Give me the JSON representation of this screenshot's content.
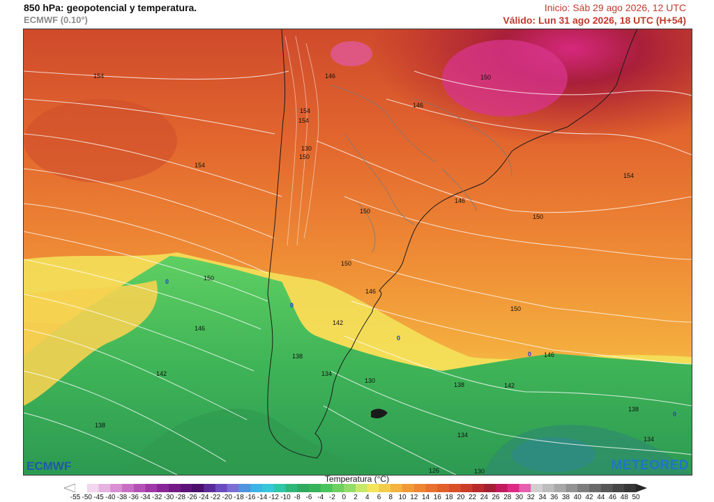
{
  "header": {
    "title": "850 hPa: geopotencial y temperatura.",
    "model": "ECMWF (0.10°)",
    "init": "Inicio: Sáb 29 ago 2026, 12 UTC",
    "valid": "Válido: Lun 31 ago 2026, 18 UTC (H+54)"
  },
  "logos": {
    "ecmwf": "ECMWF",
    "meteored": "METEORED"
  },
  "legend": {
    "title": "Temperatura (°C)",
    "ticks": [
      "-55",
      "-50",
      "-45",
      "-40",
      "-38",
      "-36",
      "-34",
      "-32",
      "-30",
      "-28",
      "-26",
      "-24",
      "-22",
      "-20",
      "-18",
      "-16",
      "-14",
      "-12",
      "-10",
      "-8",
      "-6",
      "-4",
      "-2",
      "0",
      "2",
      "4",
      "6",
      "8",
      "10",
      "12",
      "14",
      "16",
      "18",
      "20",
      "22",
      "24",
      "26",
      "28",
      "30",
      "32",
      "34",
      "36",
      "38",
      "40",
      "42",
      "44",
      "46",
      "48",
      "50"
    ],
    "colors": [
      "#ffffff",
      "#f2d7ee",
      "#e6b3e0",
      "#d98fd3",
      "#c86fc4",
      "#b550b5",
      "#a037a6",
      "#8a2597",
      "#741a88",
      "#5e1279",
      "#4b0f6b",
      "#5a2a9a",
      "#6b4bc0",
      "#7b6fd6",
      "#4f94de",
      "#3cb4e6",
      "#36c7d8",
      "#30c7a8",
      "#2fb77a",
      "#2fa860",
      "#35b35a",
      "#49c35a",
      "#6fd060",
      "#93dc6a",
      "#c8e86a",
      "#f3e55c",
      "#f5cc4a",
      "#f4b23e",
      "#f19a38",
      "#ee8533",
      "#e9712f",
      "#e2602c",
      "#d94f2a",
      "#cc3c2a",
      "#b82a2d",
      "#a41f34",
      "#c21a5c",
      "#dc2a86",
      "#e85fb0",
      "#d0d0d0",
      "#bdbdbd",
      "#a8a8a8",
      "#939393",
      "#7e7e7e",
      "#6a6a6a",
      "#575757",
      "#464646",
      "#363636"
    ]
  },
  "map": {
    "isohypse_labels": [
      "154",
      "154",
      "146",
      "154",
      "154",
      "150",
      "130",
      "146",
      "150",
      "154",
      "150",
      "146",
      "150",
      "150",
      "146",
      "142",
      "150",
      "146",
      "142",
      "138",
      "134",
      "130",
      "138",
      "142",
      "138",
      "134",
      "134",
      "126",
      "130",
      "138",
      "146",
      "150",
      "138",
      "142",
      "0",
      "0",
      "0",
      "0",
      "0"
    ]
  }
}
